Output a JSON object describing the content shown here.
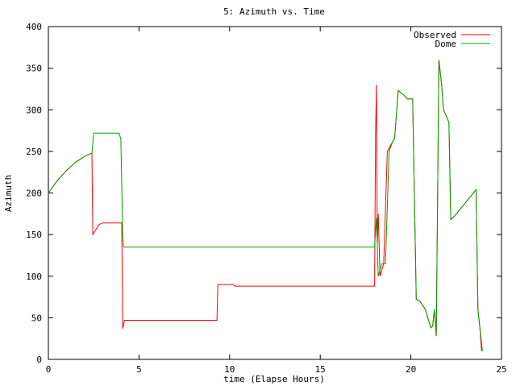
{
  "chart_data": {
    "type": "line",
    "title": "5: Azimuth vs. Time",
    "x_label": "time (Elapse Hours)",
    "y_label": "Azimuth",
    "xlim": [
      0,
      25
    ],
    "xticks": [
      0,
      5,
      10,
      15,
      20,
      25
    ],
    "ylim": [
      0,
      400
    ],
    "yticks": [
      0,
      50,
      100,
      150,
      200,
      250,
      300,
      350,
      400
    ],
    "legend": "top-right",
    "series": [
      {
        "name": "Observed",
        "color": "#ff0000",
        "x": [
          0,
          0.5,
          1,
          1.5,
          2,
          2.4,
          2.45,
          2.6,
          2.8,
          3,
          4.05,
          4.1,
          4.2,
          9.3,
          9.35,
          10.2,
          10.3,
          18,
          18.05,
          18.1,
          18.15,
          18.2,
          18.3,
          18.5,
          18.7,
          19,
          19.1,
          19.3,
          19.6,
          19.8,
          20.1,
          20.3,
          20.5,
          20.8,
          21,
          21.1,
          21.2,
          21.3,
          21.4,
          21.55,
          21.7,
          21.8,
          22,
          22.1,
          22.2,
          22.4,
          23,
          23.6,
          23.7,
          23.8,
          23.9
        ],
        "values": [
          200,
          215,
          227,
          237,
          244,
          248,
          150,
          155,
          162,
          164,
          164,
          37,
          47,
          47,
          90,
          90,
          88,
          88,
          270,
          330,
          140,
          175,
          100,
          115,
          250,
          262,
          265,
          323,
          318,
          313,
          313,
          72,
          70,
          60,
          45,
          38,
          40,
          60,
          28,
          360,
          330,
          300,
          290,
          285,
          168,
          172,
          188,
          204,
          60,
          40,
          10
        ]
      },
      {
        "name": "Dome",
        "color": "#00a000",
        "x": [
          0,
          0.5,
          1,
          1.5,
          2,
          2.4,
          2.5,
          3.9,
          4,
          4.1,
          4.15,
          18,
          18.1,
          18.2,
          18.4,
          18.6,
          18.8,
          19,
          19.1,
          19.3,
          19.6,
          19.8,
          20.1,
          20.3,
          20.5,
          20.8,
          21,
          21.1,
          21.2,
          21.3,
          21.4,
          21.55,
          21.7,
          21.8,
          22,
          22.1,
          22.2,
          22.4,
          23,
          23.6,
          23.7,
          23.8,
          23.95
        ],
        "values": [
          200,
          215,
          227,
          237,
          244,
          248,
          272,
          272,
          265,
          150,
          135,
          135,
          170,
          100,
          115,
          115,
          250,
          262,
          265,
          323,
          318,
          313,
          313,
          72,
          70,
          60,
          45,
          38,
          40,
          60,
          28,
          360,
          330,
          300,
          290,
          285,
          168,
          172,
          188,
          204,
          60,
          40,
          10
        ]
      }
    ]
  }
}
